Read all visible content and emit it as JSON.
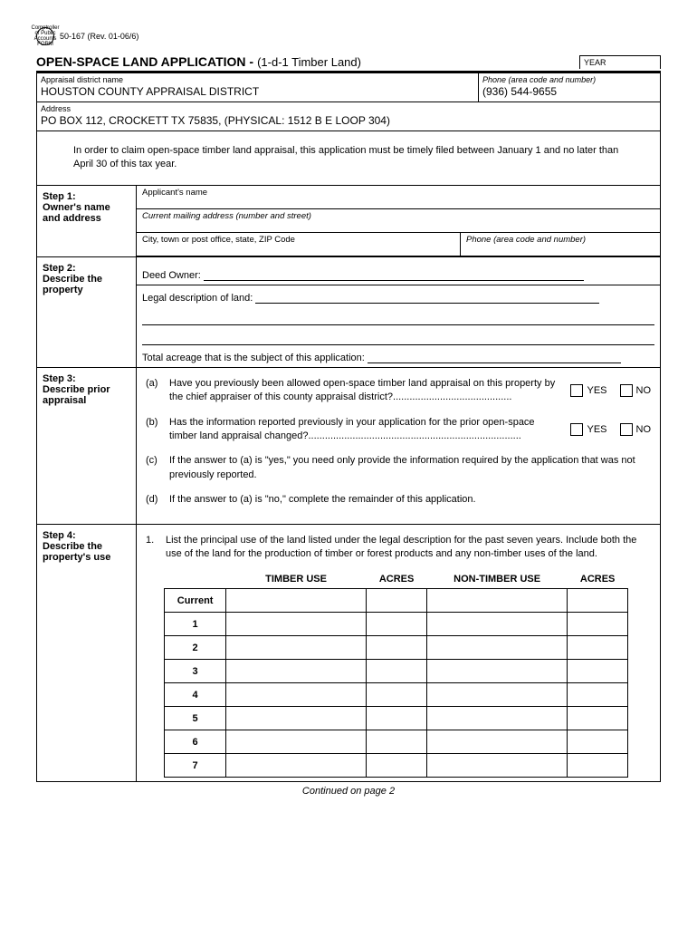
{
  "form_number": "50-167 (Rev. 01-06/6)",
  "seal_text": "Comptroller of Public Accounts FORM",
  "title_main": "OPEN-SPACE LAND APPLICATION -",
  "title_sub": "(1-d-1 Timber Land)",
  "year_label": "YEAR",
  "district_name_label": "Appraisal district name",
  "district_name_value": "HOUSTON COUNTY APPRAISAL DISTRICT",
  "district_phone_label": "Phone (area code and number)",
  "district_phone_value": "(936) 544-9655",
  "address_label": "Address",
  "address_value": "PO BOX 112, CROCKETT TX 75835, (PHYSICAL: 1512 B E LOOP 304)",
  "instruction_text": "In order to claim open-space timber land appraisal, this application must be timely filed between January 1 and no later than April 30 of this tax year.",
  "step1": {
    "heading": "Step 1:",
    "sub": "Owner's name and address",
    "applicant_label": "Applicant's name",
    "mailing_label": "Current mailing address (number and street)",
    "city_label": "City, town or post office, state, ZIP Code",
    "phone_label": "Phone (area code and number)"
  },
  "step2": {
    "heading": "Step 2:",
    "sub": "Describe the property",
    "deed_owner_label": "Deed Owner:",
    "legal_desc_label": "Legal description of land:",
    "acreage_label": "Total acreage that is the subject of this application:"
  },
  "step3": {
    "heading": "Step 3:",
    "sub": "Describe prior appraisal",
    "a": "Have you previously been allowed open-space timber land appraisal on this property by the chief appraiser of this county appraisal district?...........................................",
    "b": "Has the information reported previously in your application for the prior open-space timber land appraisal changed?.............................................................................",
    "c": "If the answer to (a) is \"yes,\" you need only provide the information required by the application that was not previously reported.",
    "d": "If the answer to (a) is \"no,\" complete the remainder of this application.",
    "yes": "YES",
    "no": "NO"
  },
  "step4": {
    "heading": "Step 4:",
    "sub": "Describe the property's use",
    "intro": "List the principal use of the land listed under the legal description for the past seven years. Include both the use of the land for the production of timber or forest products and any non-timber uses of the land.",
    "col_timber": "TIMBER USE",
    "col_acres": "ACRES",
    "col_nontimber": "NON-TIMBER USE",
    "years": [
      "Current",
      "1",
      "2",
      "3",
      "4",
      "5",
      "6",
      "7"
    ]
  },
  "continued": "Continued on page 2"
}
